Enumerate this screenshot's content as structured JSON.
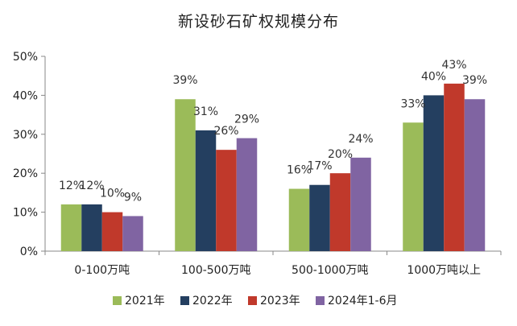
{
  "chart_data": {
    "type": "bar",
    "title": "新设砂石矿权规模分布",
    "categories": [
      "0-100万吨",
      "100-500万吨",
      "500-1000万吨",
      "1000万吨以上"
    ],
    "series": [
      {
        "name": "2021年",
        "values": [
          12,
          39,
          16,
          33
        ],
        "labels": [
          "12%",
          "39%",
          "16%",
          "33%"
        ],
        "color": "#9bbb59"
      },
      {
        "name": "2022年",
        "values": [
          12,
          31,
          17,
          40
        ],
        "labels": [
          "12%",
          "31%",
          "17%",
          "40%"
        ],
        "color": "#243f60"
      },
      {
        "name": "2023年",
        "values": [
          10,
          26,
          20,
          43
        ],
        "labels": [
          "10%",
          "26%",
          "20%",
          "43%"
        ],
        "color": "#c0392b"
      },
      {
        "name": "2024年1-6月",
        "values": [
          9,
          29,
          24,
          39
        ],
        "labels": [
          "9%",
          "29%",
          "24%",
          "39%"
        ],
        "color": "#8064a2"
      }
    ],
    "ylim": [
      0,
      50
    ],
    "yticks": [
      "0%",
      "10%",
      "20%",
      "30%",
      "40%",
      "50%"
    ],
    "xlabel": "",
    "ylabel": "",
    "legend_position": "bottom",
    "grid": false
  }
}
